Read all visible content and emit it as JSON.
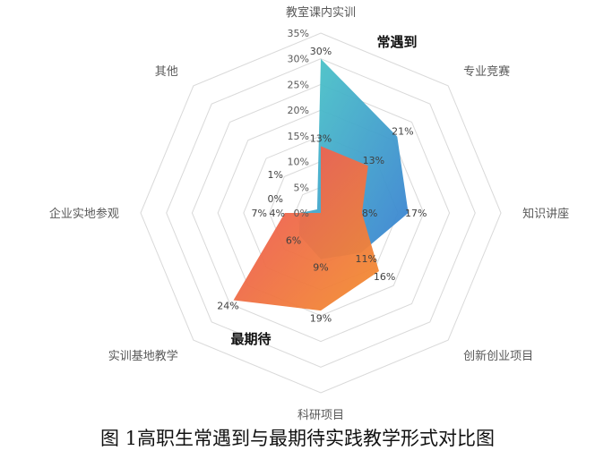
{
  "chart_data": {
    "type": "radar",
    "title": "图 1高职生常遇到与最期待实践教学形式对比图",
    "categories": [
      "教室课内实训",
      "专业竞赛",
      "知识讲座",
      "创新创业项目",
      "科研项目",
      "实训基地教学",
      "企业实地参观",
      "其他"
    ],
    "rlim": [
      0,
      35
    ],
    "rticks": [
      "0%",
      "5%",
      "10%",
      "15%",
      "20%",
      "25%",
      "30%",
      "35%"
    ],
    "grid": true,
    "series": [
      {
        "name": "常遇到",
        "values": [
          30,
          21,
          17,
          11,
          9,
          6,
          4,
          1
        ],
        "labels": [
          "30%",
          "21%",
          "17%",
          "11%",
          "9%",
          "6%",
          "4%",
          "1%"
        ],
        "colors": [
          "#4cc9c6",
          "#3a7fd2"
        ]
      },
      {
        "name": "最期待",
        "values": [
          13,
          13,
          8,
          16,
          19,
          24,
          7,
          0
        ],
        "labels": [
          "13%",
          "13%",
          "8%",
          "16%",
          "19%",
          "24%",
          "7%",
          "0%"
        ],
        "colors": [
          "#ec4e5e",
          "#f3902e"
        ]
      }
    ]
  }
}
